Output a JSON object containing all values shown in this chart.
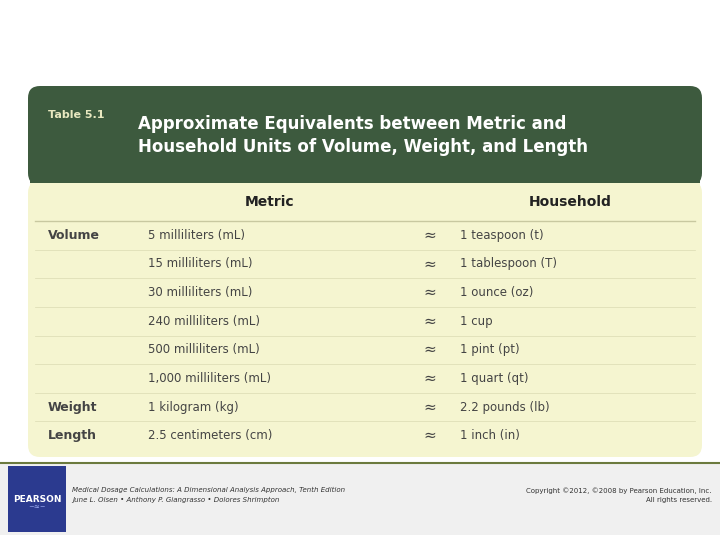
{
  "title_label": "Table 5.1",
  "title_main": "Approximate Equivalents between Metric and\nHousehold Units of Volume, Weight, and Length",
  "rows": [
    [
      "Volume",
      "5 milliliters (mL)",
      "≈",
      "1 teaspoon (t)"
    ],
    [
      "",
      "15 milliliters (mL)",
      "≈",
      "1 tablespoon (T)"
    ],
    [
      "",
      "30 milliliters (mL)",
      "≈",
      "1 ounce (oz)"
    ],
    [
      "",
      "240 milliliters (mL)",
      "≈",
      "1 cup"
    ],
    [
      "",
      "500 milliliters (mL)",
      "≈",
      "1 pint (pt)"
    ],
    [
      "",
      "1,000 milliliters (mL)",
      "≈",
      "1 quart (qt)"
    ],
    [
      "Weight",
      "1 kilogram (kg)",
      "≈",
      "2.2 pounds (lb)"
    ],
    [
      "Length",
      "2.5 centimeters (cm)",
      "≈",
      "1 inch (in)"
    ]
  ],
  "header_bg": "#3d5a3e",
  "table_bg": "#f5f5d0",
  "header_text_color": "#ffffff",
  "title_label_color": "#e8e8c0",
  "row_text_color": "#444444",
  "col_header_text_color": "#222222",
  "outer_bg": "#ffffff",
  "separator_color": "#c8c8a0",
  "footer_left_italic": "Medical Dosage Calculations: A Dimensional Analysis Approach, Tenth Edition\nJune L. Olsen • Anthony P. Giangrasso • Dolores Shrimpton",
  "footer_right": "Copyright ©2012, ©2008 by Pearson Education, Inc.\nAll rights reserved.",
  "pearson_bg": "#2b3a8f",
  "footer_bg": "#f0f0f0",
  "footer_line_color": "#6b7a3e"
}
